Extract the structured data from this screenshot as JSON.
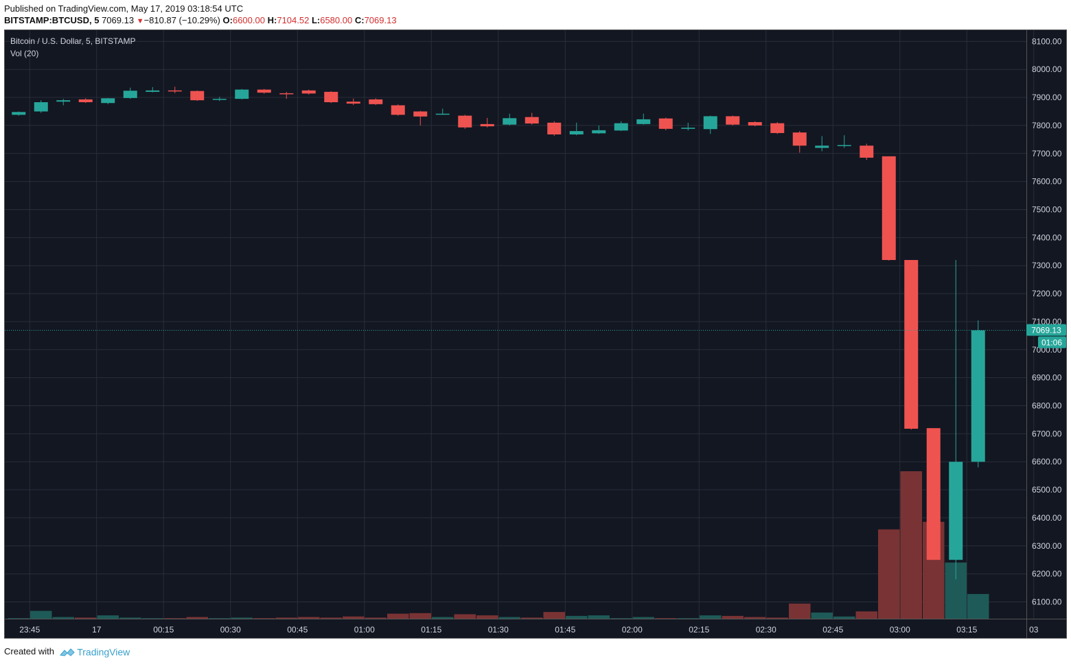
{
  "header": {
    "published": "Published on TradingView.com, May 17, 2019 03:18:54 UTC",
    "symbol": "BITSTAMP:BTCUSD, 5",
    "last": "7069.13",
    "change": "−810.87 (−10.29%)",
    "o_label": "O:",
    "o_value": "6600.00",
    "h_label": "H:",
    "h_value": "7104.52",
    "l_label": "L:",
    "l_value": "6580.00",
    "c_label": "C:",
    "c_value": "7069.13"
  },
  "legend": {
    "title": "Bitcoin / U.S. Dollar, 5, BITSTAMP",
    "volume": "Vol (20)"
  },
  "price_label": {
    "value": "7069.13",
    "countdown": "01:06"
  },
  "footer": {
    "created": "Created with",
    "brand": "TradingView"
  },
  "colors": {
    "background": "#131722",
    "grid": "#2a2e39",
    "up": "#26a69a",
    "down": "#ef5350",
    "volume_up": "#1e5a57",
    "volume_down": "#7a3334",
    "axis_text": "#d1d4dc"
  },
  "chart_data": {
    "type": "candlestick",
    "interval_minutes": 5,
    "y_ticks": [
      6100,
      6200,
      6300,
      6400,
      6500,
      6600,
      6700,
      6800,
      6900,
      7000,
      7100,
      7200,
      7300,
      7400,
      7500,
      7600,
      7700,
      7800,
      7900,
      8000,
      8100
    ],
    "y_tick_labels": [
      "6100.00",
      "6200.00",
      "6300.00",
      "6400.00",
      "6500.00",
      "6600.00",
      "6700.00",
      "6800.00",
      "6900.00",
      "7000.00",
      "7100.00",
      "7200.00",
      "7300.00",
      "7400.00",
      "7500.00",
      "7600.00",
      "7700.00",
      "7800.00",
      "7900.00",
      "8000.00",
      "8100.00"
    ],
    "ylim": [
      6040,
      8140
    ],
    "x_ticks": [
      {
        "i": 0.5,
        "label": "23:45"
      },
      {
        "i": 3.5,
        "label": "17"
      },
      {
        "i": 6.5,
        "label": "00:15"
      },
      {
        "i": 9.5,
        "label": "00:30"
      },
      {
        "i": 12.5,
        "label": "00:45"
      },
      {
        "i": 15.5,
        "label": "01:00"
      },
      {
        "i": 18.5,
        "label": "01:15"
      },
      {
        "i": 21.5,
        "label": "01:30"
      },
      {
        "i": 24.5,
        "label": "01:45"
      },
      {
        "i": 27.5,
        "label": "02:00"
      },
      {
        "i": 30.5,
        "label": "02:15"
      },
      {
        "i": 33.5,
        "label": "02:30"
      },
      {
        "i": 36.5,
        "label": "02:45"
      },
      {
        "i": 39.5,
        "label": "03:00"
      },
      {
        "i": 42.5,
        "label": "03:15"
      },
      {
        "i": 45.5,
        "label": "03"
      }
    ],
    "candles": [
      {
        "o": 7838,
        "h": 7850,
        "l": 7835,
        "c": 7848,
        "v": 2
      },
      {
        "o": 7850,
        "h": 7890,
        "l": 7845,
        "c": 7883,
        "v": 28
      },
      {
        "o": 7885,
        "h": 7895,
        "l": 7872,
        "c": 7890,
        "v": 6
      },
      {
        "o": 7893,
        "h": 7897,
        "l": 7880,
        "c": 7883,
        "v": 4
      },
      {
        "o": 7880,
        "h": 7898,
        "l": 7876,
        "c": 7897,
        "v": 12
      },
      {
        "o": 7898,
        "h": 7935,
        "l": 7895,
        "c": 7924,
        "v": 4
      },
      {
        "o": 7920,
        "h": 7937,
        "l": 7918,
        "c": 7925,
        "v": 2
      },
      {
        "o": 7925,
        "h": 7938,
        "l": 7915,
        "c": 7923,
        "v": 2
      },
      {
        "o": 7923,
        "h": 7925,
        "l": 7888,
        "c": 7890,
        "v": 6
      },
      {
        "o": 7892,
        "h": 7902,
        "l": 7887,
        "c": 7895,
        "v": 2
      },
      {
        "o": 7895,
        "h": 7930,
        "l": 7893,
        "c": 7928,
        "v": 4
      },
      {
        "o": 7928,
        "h": 7930,
        "l": 7913,
        "c": 7917,
        "v": 2
      },
      {
        "o": 7915,
        "h": 7920,
        "l": 7895,
        "c": 7912,
        "v": 4
      },
      {
        "o": 7925,
        "h": 7928,
        "l": 7910,
        "c": 7914,
        "v": 6
      },
      {
        "o": 7920,
        "h": 7922,
        "l": 7880,
        "c": 7883,
        "v": 4
      },
      {
        "o": 7885,
        "h": 7896,
        "l": 7873,
        "c": 7878,
        "v": 8
      },
      {
        "o": 7893,
        "h": 7897,
        "l": 7873,
        "c": 7876,
        "v": 4
      },
      {
        "o": 7872,
        "h": 7875,
        "l": 7835,
        "c": 7838,
        "v": 18
      },
      {
        "o": 7850,
        "h": 7852,
        "l": 7800,
        "c": 7832,
        "v": 20
      },
      {
        "o": 7842,
        "h": 7860,
        "l": 7838,
        "c": 7842,
        "v": 6
      },
      {
        "o": 7835,
        "h": 7838,
        "l": 7788,
        "c": 7793,
        "v": 16
      },
      {
        "o": 7805,
        "h": 7827,
        "l": 7793,
        "c": 7797,
        "v": 12
      },
      {
        "o": 7803,
        "h": 7842,
        "l": 7800,
        "c": 7826,
        "v": 6
      },
      {
        "o": 7830,
        "h": 7845,
        "l": 7803,
        "c": 7807,
        "v": 4
      },
      {
        "o": 7810,
        "h": 7815,
        "l": 7763,
        "c": 7768,
        "v": 24
      },
      {
        "o": 7768,
        "h": 7810,
        "l": 7765,
        "c": 7780,
        "v": 10
      },
      {
        "o": 7772,
        "h": 7800,
        "l": 7770,
        "c": 7783,
        "v": 12
      },
      {
        "o": 7782,
        "h": 7815,
        "l": 7780,
        "c": 7808,
        "v": 2
      },
      {
        "o": 7805,
        "h": 7842,
        "l": 7803,
        "c": 7822,
        "v": 6
      },
      {
        "o": 7825,
        "h": 7828,
        "l": 7783,
        "c": 7788,
        "v": 2
      },
      {
        "o": 7788,
        "h": 7810,
        "l": 7782,
        "c": 7792,
        "v": 2
      },
      {
        "o": 7787,
        "h": 7835,
        "l": 7770,
        "c": 7833,
        "v": 12
      },
      {
        "o": 7833,
        "h": 7835,
        "l": 7800,
        "c": 7803,
        "v": 10
      },
      {
        "o": 7812,
        "h": 7815,
        "l": 7797,
        "c": 7800,
        "v": 6
      },
      {
        "o": 7808,
        "h": 7812,
        "l": 7770,
        "c": 7773,
        "v": 4
      },
      {
        "o": 7775,
        "h": 7780,
        "l": 7703,
        "c": 7728,
        "v": 54
      },
      {
        "o": 7720,
        "h": 7762,
        "l": 7708,
        "c": 7728,
        "v": 22
      },
      {
        "o": 7728,
        "h": 7765,
        "l": 7720,
        "c": 7730,
        "v": 8
      },
      {
        "o": 7728,
        "h": 7735,
        "l": 7677,
        "c": 7685,
        "v": 26
      },
      {
        "o": 7690,
        "h": 7690,
        "l": 7318,
        "c": 7320,
        "v": 318
      },
      {
        "o": 7320,
        "h": 7320,
        "l": 6715,
        "c": 6718,
        "v": 525
      },
      {
        "o": 6720,
        "h": 6720,
        "l": 6250,
        "c": 6250,
        "v": 345
      },
      {
        "o": 6250,
        "h": 7320,
        "l": 6180,
        "c": 6600,
        "v": 200
      },
      {
        "o": 6600,
        "h": 7104.52,
        "l": 6580,
        "c": 7069.13,
        "v": 88
      }
    ]
  }
}
